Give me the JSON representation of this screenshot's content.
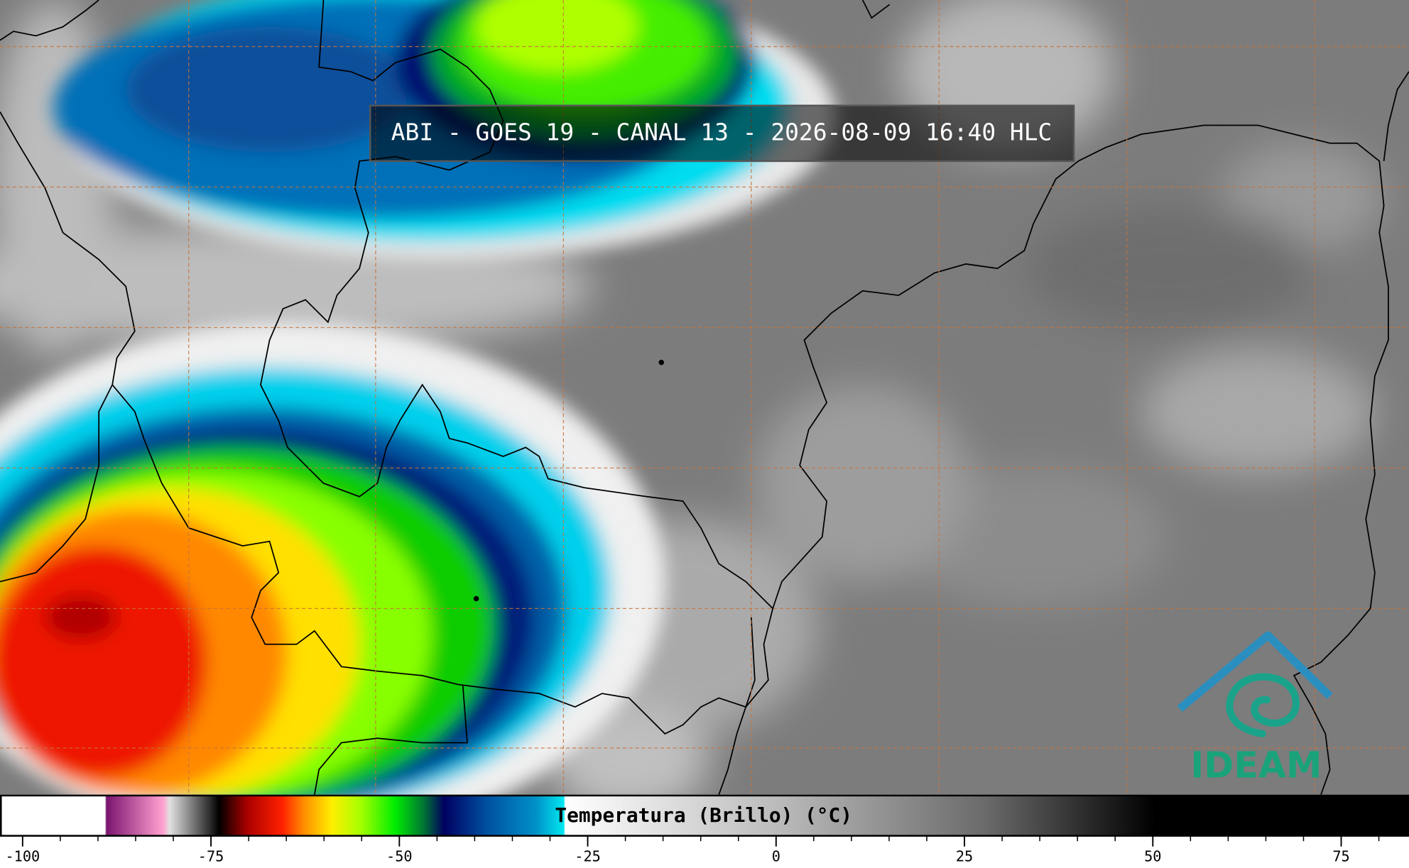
{
  "title": "ABI - GOES 19 - CANAL 13 - 2026-08-09 16:40 HLC",
  "colorbar": {
    "label": "Temperatura (Brillo) (°C)",
    "xlim": [
      -103,
      84
    ],
    "xticks": [
      -100,
      -75,
      -50,
      -25,
      0,
      25,
      50,
      75
    ]
  },
  "logo": "IDEAM"
}
